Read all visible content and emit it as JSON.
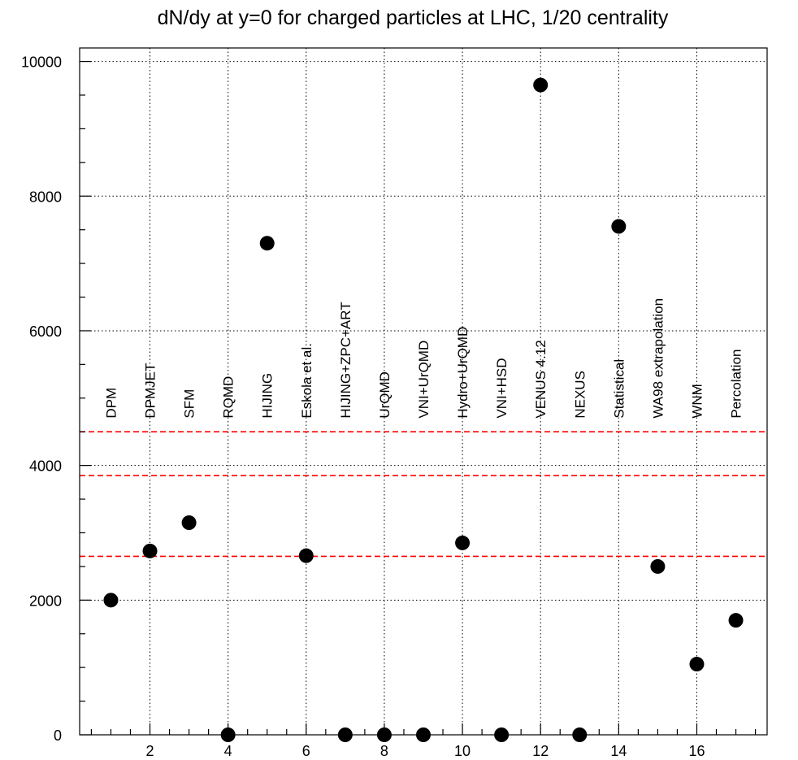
{
  "chart_data": {
    "type": "scatter",
    "title": "dN/dy at y=0 for charged particles at LHC, 1/20 centrality",
    "xlabel": "",
    "ylabel": "",
    "xlim": [
      0.2,
      17.8
    ],
    "ylim": [
      0,
      10200
    ],
    "x_ticks": [
      2,
      4,
      6,
      8,
      10,
      12,
      14,
      16
    ],
    "x_minor_step": 0.5,
    "y_ticks": [
      0,
      2000,
      4000,
      6000,
      8000,
      10000
    ],
    "y_minor_step": 500,
    "grid": true,
    "x_grid": [
      2,
      4,
      6,
      8,
      10,
      12,
      14,
      16
    ],
    "y_grid": [
      2000,
      4000,
      6000,
      8000,
      10000
    ],
    "points": [
      {
        "x": 1,
        "y": 2000,
        "label": "DPM"
      },
      {
        "x": 2,
        "y": 2730,
        "label": "DPMJET"
      },
      {
        "x": 3,
        "y": 3150,
        "label": "SFM"
      },
      {
        "x": 4,
        "y": 0,
        "label": "RQMD"
      },
      {
        "x": 5,
        "y": 7300,
        "label": "HIJING"
      },
      {
        "x": 6,
        "y": 2660,
        "label": "Eskola et al."
      },
      {
        "x": 7,
        "y": 0,
        "label": "HIJING+ZPC+ART"
      },
      {
        "x": 8,
        "y": 0,
        "label": "UrQMD"
      },
      {
        "x": 9,
        "y": 0,
        "label": "VNI+UrQMD"
      },
      {
        "x": 10,
        "y": 2850,
        "label": "Hydro+UrQMD"
      },
      {
        "x": 11,
        "y": 0,
        "label": "VNI+HSD"
      },
      {
        "x": 12,
        "y": 9650,
        "label": "VENUS 4.12"
      },
      {
        "x": 13,
        "y": 0,
        "label": "NEXUS"
      },
      {
        "x": 14,
        "y": 7550,
        "label": "Statistical"
      },
      {
        "x": 15,
        "y": 2500,
        "label": "WA98 extrapolation"
      },
      {
        "x": 16,
        "y": 1050,
        "label": "WNM"
      },
      {
        "x": 17,
        "y": 1700,
        "label": "Percolation"
      }
    ],
    "label_anchor_y": 4700,
    "reference_lines": [
      {
        "y": 4500,
        "color": "#ff0000",
        "style": "dashed"
      },
      {
        "y": 3850,
        "color": "#ff0000",
        "style": "dashed"
      },
      {
        "y": 2650,
        "color": "#ff0000",
        "style": "dashed"
      }
    ],
    "marker_color": "#000000"
  }
}
